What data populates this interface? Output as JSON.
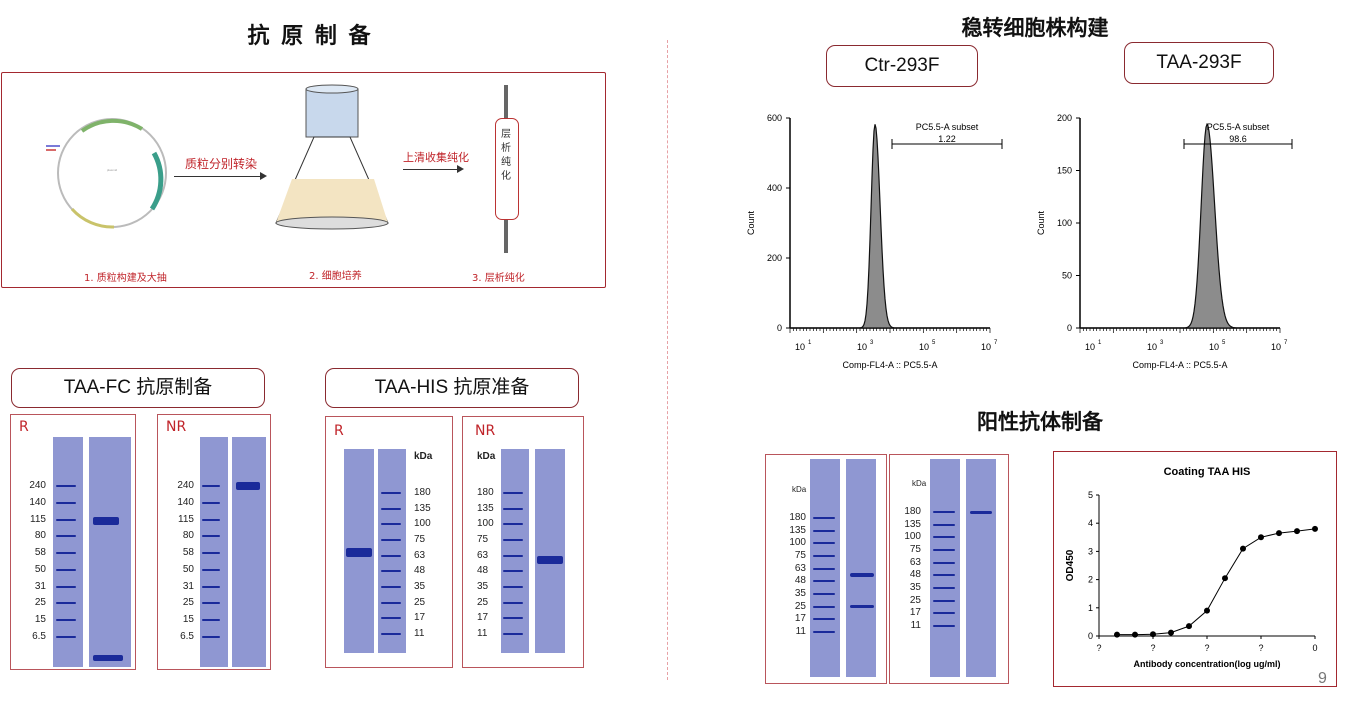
{
  "titles": {
    "antigen_prep": "抗 原 制 备",
    "stable_line": "稳转细胞株构建",
    "positive_ab": "阳性抗体制备"
  },
  "workflow": {
    "arrow1": "质粒分别转染",
    "arrow2": "上清收集纯化",
    "column_text": [
      "层",
      "析",
      "纯",
      "化"
    ],
    "step1": "1. 质粒构建及大抽",
    "step2": "2. 细胞培养",
    "step3": "3. 层析纯化"
  },
  "gel_fc": {
    "label": "TAA-FC 抗原制备",
    "r": "R",
    "nr": "NR",
    "markers": [
      "240",
      "140",
      "115",
      "80",
      "58",
      "50",
      "31",
      "25",
      "15",
      "6.5"
    ]
  },
  "gel_his": {
    "label": "TAA-HIS 抗原准备",
    "r": "R",
    "nr": "NR",
    "kda": "kDa",
    "markers": [
      "180",
      "135",
      "100",
      "75",
      "63",
      "48",
      "35",
      "25",
      "17",
      "11"
    ]
  },
  "cells": {
    "ctr_label": "Ctr-293F",
    "taa_label": "TAA-293F",
    "subset": "PC5.5-A subset",
    "ctr_pct": "1.22",
    "taa_pct": "98.6",
    "ylabel": "Count",
    "xlabel": "Comp-FL4-A :: PC5.5-A",
    "ctr_yticks": [
      "0",
      "200",
      "400",
      "600"
    ],
    "taa_yticks": [
      "0",
      "50",
      "100",
      "150",
      "200"
    ],
    "xticks": [
      "10",
      "10",
      "10",
      "10"
    ],
    "xexp": [
      "1",
      "3",
      "5",
      "7"
    ]
  },
  "positive_gel": {
    "kda": "kDa",
    "markers": [
      "180",
      "135",
      "100",
      "75",
      "63",
      "48",
      "35",
      "25",
      "17",
      "11"
    ]
  },
  "chart_data": {
    "type": "line",
    "title": "Coating TAA HIS",
    "xlabel": "Antibody concentration(log ug/ml)",
    "ylabel": "OD450",
    "ylim": [
      0,
      5
    ],
    "yticks": [
      "0",
      "1",
      "2",
      "3",
      "4",
      "5"
    ],
    "xticks": [
      "?",
      "?",
      "?",
      "?",
      "0"
    ],
    "x": [
      1,
      2,
      3,
      4,
      5,
      6,
      7,
      8,
      9,
      10,
      11,
      12
    ],
    "values": [
      0.05,
      0.05,
      0.06,
      0.12,
      0.35,
      0.9,
      2.05,
      3.1,
      3.5,
      3.65,
      3.72,
      3.8
    ]
  },
  "page_number": "9",
  "colors": {
    "accent": "#a3282f",
    "gel": "#8f97d2",
    "band": "#1a2a9a"
  }
}
